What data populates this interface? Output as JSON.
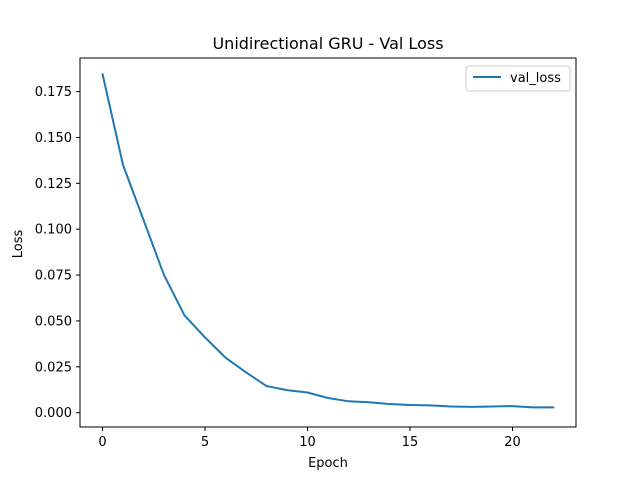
{
  "chart_data": {
    "type": "line",
    "title": "Unidirectional GRU - Val Loss",
    "xlabel": "Epoch",
    "ylabel": "Loss",
    "xlim": [
      -1.1,
      23.1
    ],
    "ylim": [
      -0.0078,
      0.1933
    ],
    "xticks": [
      0,
      5,
      10,
      15,
      20
    ],
    "xtick_labels": [
      "0",
      "5",
      "10",
      "15",
      "20"
    ],
    "yticks": [
      0.0,
      0.025,
      0.05,
      0.075,
      0.1,
      0.125,
      0.15,
      0.175
    ],
    "ytick_labels": [
      "0.000",
      "0.025",
      "0.050",
      "0.075",
      "0.100",
      "0.125",
      "0.150",
      "0.175"
    ],
    "grid": false,
    "legend_position": "top-right",
    "series": [
      {
        "name": "val_loss",
        "color": "#1f77b4",
        "x": [
          0,
          1,
          2,
          3,
          4,
          5,
          6,
          7,
          8,
          9,
          10,
          11,
          12,
          13,
          14,
          15,
          16,
          17,
          18,
          19,
          20,
          21,
          22
        ],
        "y": [
          0.1845,
          0.135,
          0.105,
          0.075,
          0.053,
          0.041,
          0.03,
          0.022,
          0.0145,
          0.0123,
          0.011,
          0.008,
          0.0062,
          0.0057,
          0.0047,
          0.0042,
          0.004,
          0.0034,
          0.0032,
          0.0034,
          0.0036,
          0.0029,
          0.0029
        ]
      }
    ]
  }
}
